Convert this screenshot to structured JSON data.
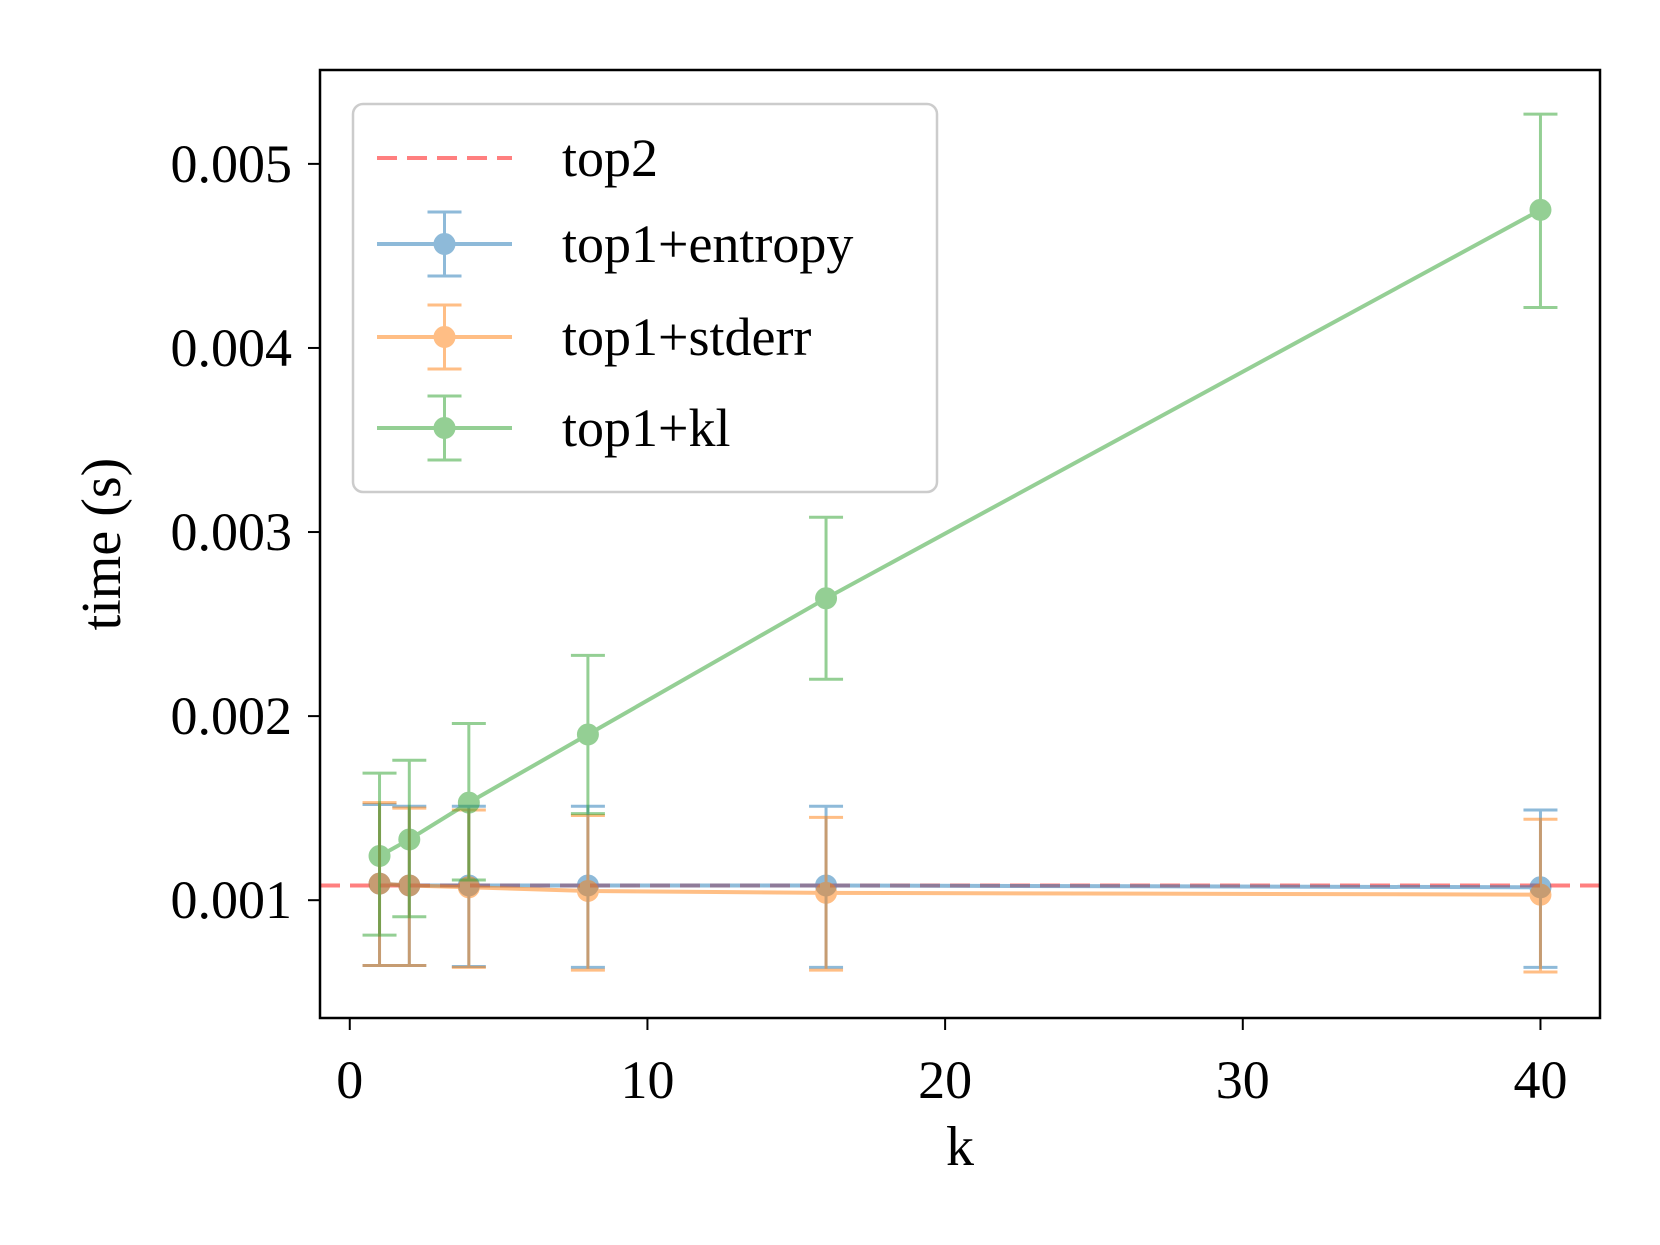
{
  "chart_data": {
    "type": "line",
    "title": "",
    "xlabel": "k",
    "ylabel": "time (s)",
    "xlim": [
      -1,
      42
    ],
    "ylim": [
      0.00036,
      0.00551
    ],
    "xticks": [
      0,
      10,
      20,
      30,
      40
    ],
    "xtick_labels": [
      "0",
      "10",
      "20",
      "30",
      "40"
    ],
    "yticks": [
      0.001,
      0.002,
      0.003,
      0.004,
      0.005
    ],
    "ytick_labels": [
      "0.001",
      "0.002",
      "0.003",
      "0.004",
      "0.005"
    ],
    "x": [
      1,
      2,
      4,
      8,
      16,
      40
    ],
    "legend_position": "upper-left",
    "reference_line": {
      "name": "top2",
      "value": 0.00108,
      "color": "#ff7f7f",
      "style": "dashed"
    },
    "series": [
      {
        "name": "top1+entropy",
        "color": "#1f77b4",
        "values": [
          0.00109,
          0.00108,
          0.00108,
          0.00108,
          0.00108,
          0.00107
        ],
        "err_low": [
          0.000645,
          0.000645,
          0.00064,
          0.000635,
          0.000635,
          0.000635
        ],
        "err_high": [
          0.00152,
          0.00151,
          0.00151,
          0.00151,
          0.00151,
          0.00149
        ]
      },
      {
        "name": "top1+stderr",
        "color": "#ff7f0e",
        "values": [
          0.00109,
          0.00108,
          0.00107,
          0.00105,
          0.00104,
          0.00103
        ],
        "err_low": [
          0.000645,
          0.000645,
          0.000635,
          0.00062,
          0.00062,
          0.00061
        ],
        "err_high": [
          0.00153,
          0.0015,
          0.00149,
          0.00146,
          0.00145,
          0.00144
        ]
      },
      {
        "name": "top1+kl",
        "color": "#2ca02c",
        "values": [
          0.00124,
          0.00133,
          0.00153,
          0.0019,
          0.00264,
          0.00475
        ],
        "err_low": [
          0.00081,
          0.00091,
          0.00111,
          0.00147,
          0.0022,
          0.00422
        ],
        "err_high": [
          0.00169,
          0.00176,
          0.00196,
          0.00233,
          0.00308,
          0.00527
        ]
      }
    ]
  }
}
